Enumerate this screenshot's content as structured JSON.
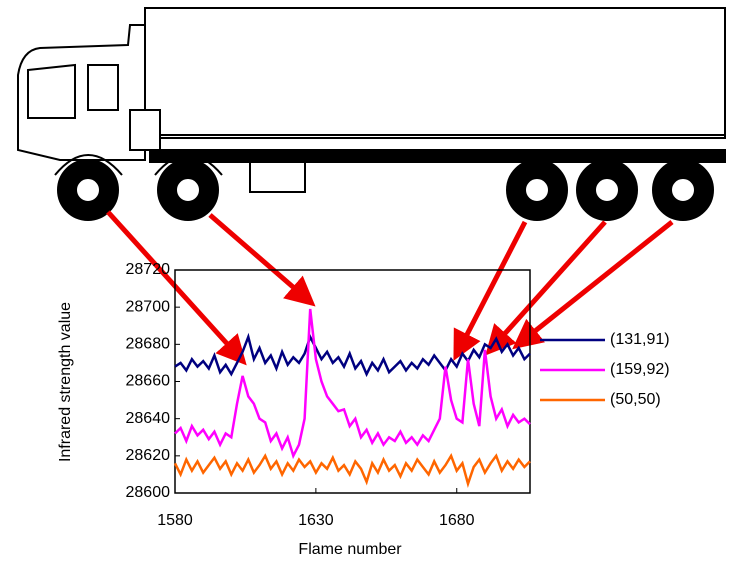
{
  "chart_data": {
    "type": "line",
    "xlabel": "Flame number",
    "ylabel": "Infrared strength value",
    "x": [
      1580,
      1582,
      1584,
      1586,
      1588,
      1590,
      1592,
      1594,
      1596,
      1598,
      1600,
      1602,
      1604,
      1606,
      1608,
      1610,
      1612,
      1614,
      1616,
      1618,
      1620,
      1622,
      1624,
      1626,
      1628,
      1630,
      1632,
      1634,
      1636,
      1638,
      1640,
      1642,
      1644,
      1646,
      1648,
      1650,
      1652,
      1654,
      1656,
      1658,
      1660,
      1662,
      1664,
      1666,
      1668,
      1670,
      1672,
      1674,
      1676,
      1678,
      1680,
      1682,
      1684,
      1686,
      1688,
      1690,
      1692,
      1694,
      1696,
      1698,
      1700,
      1702,
      1704,
      1706
    ],
    "series": [
      {
        "name": "(131,91)",
        "color": "#000080",
        "values": [
          28668,
          28670,
          28666,
          28672,
          28668,
          28671,
          28667,
          28674,
          28665,
          28669,
          28664,
          28670,
          28676,
          28684,
          28672,
          28678,
          28670,
          28674,
          28667,
          28676,
          28669,
          28673,
          28670,
          28675,
          28684,
          28678,
          28672,
          28676,
          28670,
          28673,
          28668,
          28675,
          28667,
          28671,
          28664,
          28670,
          28666,
          28672,
          28665,
          28668,
          28671,
          28666,
          28670,
          28667,
          28672,
          28669,
          28674,
          28670,
          28666,
          28672,
          28668,
          28675,
          28671,
          28677,
          28673,
          28680,
          28678,
          28683,
          28676,
          28680,
          28674,
          28678,
          28672,
          28675
        ]
      },
      {
        "name": "(159,92)",
        "color": "#ff00ff",
        "values": [
          28632,
          28635,
          28628,
          28636,
          28631,
          28634,
          28629,
          28633,
          28626,
          28632,
          28630,
          28648,
          28663,
          28652,
          28648,
          28640,
          28638,
          28628,
          28632,
          28624,
          28630,
          28620,
          28626,
          28640,
          28699,
          28672,
          28660,
          28652,
          28648,
          28644,
          28645,
          28636,
          28640,
          28630,
          28634,
          28627,
          28632,
          28626,
          28630,
          28628,
          28633,
          28627,
          28630,
          28626,
          28631,
          28628,
          28634,
          28640,
          28668,
          28650,
          28640,
          28638,
          28672,
          28648,
          28636,
          28677,
          28652,
          28640,
          28645,
          28636,
          28642,
          28638,
          28640,
          28637
        ]
      },
      {
        "name": "(50,50)",
        "color": "#ff6600",
        "values": [
          28616,
          28610,
          28618,
          28612,
          28617,
          28611,
          28615,
          28619,
          28613,
          28617,
          28610,
          28616,
          28612,
          28618,
          28611,
          28615,
          28620,
          28613,
          28617,
          28610,
          28616,
          28612,
          28618,
          28614,
          28617,
          28611,
          28616,
          28613,
          28619,
          28612,
          28615,
          28610,
          28617,
          28613,
          28606,
          28616,
          28611,
          28618,
          28612,
          28615,
          28609,
          28616,
          28612,
          28618,
          28614,
          28610,
          28617,
          28611,
          28615,
          28620,
          28612,
          28616,
          28605,
          28614,
          28618,
          28611,
          28616,
          28620,
          28612,
          28617,
          28613,
          28618,
          28614,
          28617
        ]
      }
    ],
    "xlim": [
      1580,
      1706
    ],
    "xticks": [
      1580,
      1630,
      1680
    ],
    "ylim": [
      28600,
      28720
    ],
    "yticks": [
      28600,
      28620,
      28640,
      28660,
      28680,
      28700,
      28720
    ]
  }
}
